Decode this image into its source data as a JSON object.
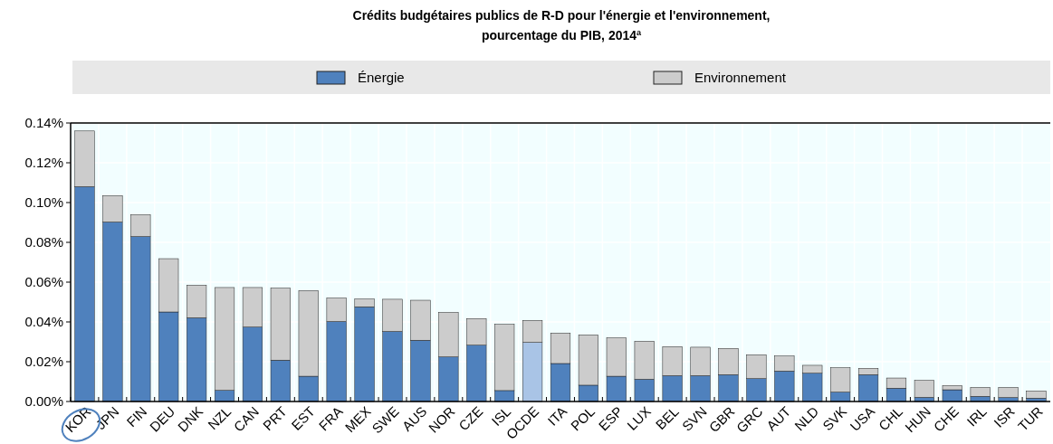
{
  "chart_data": {
    "type": "bar",
    "stacked": true,
    "title": "Crédits budgétaires publics de R-D pour l'énergie et l'environnement,\npourcentage du  PIB, 2014$^{a}$",
    "categories": [
      "KOR",
      "JPN",
      "FIN",
      "DEU",
      "DNK",
      "NZL",
      "CAN",
      "PRT",
      "EST",
      "FRA",
      "MEX",
      "SWE",
      "AUS",
      "NOR",
      "CZE",
      "ISL",
      "OCDE",
      "ITA",
      "POL",
      "ESP",
      "LUX",
      "BEL",
      "SVN",
      "GBR",
      "GRC",
      "AUT",
      "NLD",
      "SVK",
      "USA",
      "CHL",
      "HUN",
      "CHE",
      "IRL",
      "ISR",
      "TUR"
    ],
    "series": [
      {
        "name": "Énergie",
        "color": "#4f81bd",
        "colors": [
          "#4f81bd",
          "#4f81bd",
          "#4f81bd",
          "#4f81bd",
          "#4f81bd",
          "#4f81bd",
          "#4f81bd",
          "#4f81bd",
          "#4f81bd",
          "#4f81bd",
          "#4f81bd",
          "#4f81bd",
          "#4f81bd",
          "#4f81bd",
          "#4f81bd",
          "#4f81bd",
          "#a9c4e6",
          "#4f81bd",
          "#4f81bd",
          "#4f81bd",
          "#4f81bd",
          "#4f81bd",
          "#4f81bd",
          "#4f81bd",
          "#4f81bd",
          "#4f81bd",
          "#4f81bd",
          "#4f81bd",
          "#4f81bd",
          "#4f81bd",
          "#4f81bd",
          "#4f81bd",
          "#4f81bd",
          "#4f81bd",
          "#4f81bd"
        ],
        "values": [
          0.108,
          0.0902,
          0.0829,
          0.045,
          0.0421,
          0.0056,
          0.0374,
          0.0208,
          0.0127,
          0.0402,
          0.0476,
          0.0352,
          0.0308,
          0.0224,
          0.0283,
          0.0055,
          0.0297,
          0.0191,
          0.0082,
          0.0127,
          0.0112,
          0.013,
          0.013,
          0.0135,
          0.0115,
          0.0153,
          0.0142,
          0.0047,
          0.0135,
          0.0067,
          0.0021,
          0.0059,
          0.0026,
          0.002,
          0.0017
        ]
      },
      {
        "name": "Environnement",
        "color": "#cccccc",
        "values": [
          0.028,
          0.0133,
          0.011,
          0.0268,
          0.0164,
          0.0517,
          0.0199,
          0.0362,
          0.0431,
          0.0118,
          0.0039,
          0.0162,
          0.0201,
          0.0224,
          0.0134,
          0.0333,
          0.0111,
          0.0153,
          0.0253,
          0.0193,
          0.0191,
          0.0146,
          0.0143,
          0.0132,
          0.012,
          0.0076,
          0.004,
          0.0123,
          0.0032,
          0.0051,
          0.0085,
          0.0021,
          0.0045,
          0.0051,
          0.0036
        ]
      }
    ],
    "ylim": [
      0,
      0.14
    ],
    "yticks": [
      {
        "value": 0,
        "label": "0.00%"
      },
      {
        "value": 0.02,
        "label": "0.02%"
      },
      {
        "value": 0.04,
        "label": "0.04%"
      },
      {
        "value": 0.06,
        "label": "0.06%"
      },
      {
        "value": 0.08,
        "label": "0.08%"
      },
      {
        "value": 0.1,
        "label": "0.10%"
      },
      {
        "value": 0.12,
        "label": "0.12%"
      },
      {
        "value": 0.14,
        "label": "0.14%"
      }
    ],
    "grid": true,
    "legend": "top"
  }
}
